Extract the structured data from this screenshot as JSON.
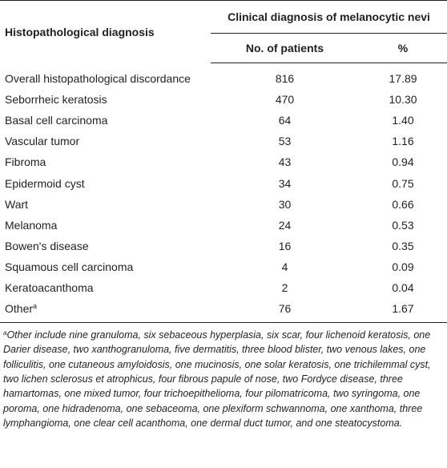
{
  "table": {
    "col1_header": "Histopathological diagnosis",
    "span_header": "Clinical diagnosis of melanocytic nevi",
    "col2_header": "No. of patients",
    "col3_header": "%",
    "rows": [
      {
        "name": "Overall histopathological discordance",
        "sup": "",
        "n": "816",
        "pct": "17.89"
      },
      {
        "name": "Seborrheic keratosis",
        "sup": "",
        "n": "470",
        "pct": "10.30"
      },
      {
        "name": "Basal cell carcinoma",
        "sup": "",
        "n": "64",
        "pct": "1.40"
      },
      {
        "name": "Vascular tumor",
        "sup": "",
        "n": "53",
        "pct": "1.16"
      },
      {
        "name": "Fibroma",
        "sup": "",
        "n": "43",
        "pct": "0.94"
      },
      {
        "name": "Epidermoid cyst",
        "sup": "",
        "n": "34",
        "pct": "0.75"
      },
      {
        "name": "Wart",
        "sup": "",
        "n": "30",
        "pct": "0.66"
      },
      {
        "name": "Melanoma",
        "sup": "",
        "n": "24",
        "pct": "0.53"
      },
      {
        "name": "Bowen's disease",
        "sup": "",
        "n": "16",
        "pct": "0.35"
      },
      {
        "name": "Squamous cell carcinoma",
        "sup": "",
        "n": "4",
        "pct": "0.09"
      },
      {
        "name": "Keratoacanthoma",
        "sup": "",
        "n": "2",
        "pct": "0.04"
      },
      {
        "name": "Other",
        "sup": "a",
        "n": "76",
        "pct": "1.67"
      }
    ]
  },
  "footnote": {
    "marker": "a",
    "text": "Other include nine granuloma, six sebaceous hyperplasia, six scar, four lichenoid keratosis, one Darier disease, two xanthogranuloma, five dermatitis, three blood blister, two venous lakes, one folliculitis, one cutaneous amyloidosis, one mucinosis, one solar keratosis, one trichilemmal cyst, two lichen sclerosus et atrophicus, four fibrous papule of nose, two Fordyce disease, three hamartomas, one mixed tumor, four trichoepithelioma, four pilomatricoma, two syringoma, one poroma, one hidradenoma, one sebaceoma, one plexiform schwannoma, one xanthoma, three lymphangioma, one clear cell acanthoma, one dermal duct tumor, and one steatocystoma."
  }
}
